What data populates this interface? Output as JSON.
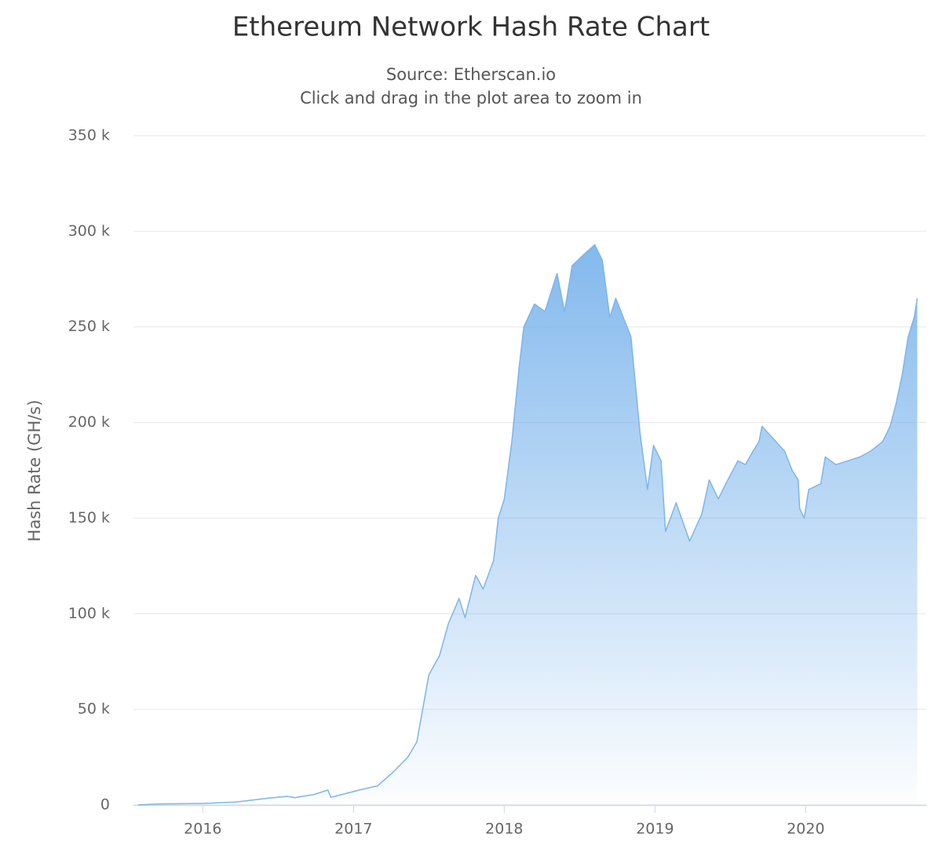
{
  "chart_data": {
    "type": "area",
    "title": "Ethereum Network Hash Rate Chart",
    "subtitle": "Source: Etherscan.io",
    "annotation": "Click and drag in the plot area to zoom in",
    "y_label": "Hash Rate (GH/s)",
    "color": "#7cb5ec",
    "grid": true,
    "x": [
      2015.57,
      2015.7,
      2016.0,
      2016.22,
      2016.43,
      2016.56,
      2016.61,
      2016.74,
      2016.83,
      2016.85,
      2016.95,
      2017.05,
      2017.16,
      2017.26,
      2017.36,
      2017.42,
      2017.47,
      2017.5,
      2017.57,
      2017.63,
      2017.7,
      2017.74,
      2017.81,
      2017.86,
      2017.93,
      2017.96,
      2018.0,
      2018.05,
      2018.1,
      2018.13,
      2018.2,
      2018.27,
      2018.35,
      2018.4,
      2018.45,
      2018.53,
      2018.6,
      2018.65,
      2018.7,
      2018.74,
      2018.79,
      2018.84,
      2018.9,
      2018.95,
      2018.99,
      2019.04,
      2019.07,
      2019.14,
      2019.23,
      2019.31,
      2019.36,
      2019.42,
      2019.47,
      2019.55,
      2019.6,
      2019.65,
      2019.69,
      2019.71,
      2019.78,
      2019.86,
      2019.91,
      2019.95,
      2019.96,
      2019.99,
      2020.02,
      2020.1,
      2020.13,
      2020.2,
      2020.28,
      2020.36,
      2020.43,
      2020.51,
      2020.56,
      2020.6,
      2020.64,
      2020.68,
      2020.72,
      2020.74
    ],
    "values": [
      0,
      500,
      800,
      1500,
      3500,
      4500,
      3800,
      5500,
      7800,
      4000,
      6000,
      8000,
      10000,
      17000,
      25000,
      33000,
      55000,
      68000,
      78000,
      95000,
      108000,
      98000,
      120000,
      113000,
      128000,
      150000,
      160000,
      190000,
      230000,
      250000,
      262000,
      258000,
      278000,
      258000,
      282000,
      288000,
      293000,
      285000,
      255000,
      265000,
      255000,
      245000,
      195000,
      165000,
      188000,
      180000,
      143000,
      158000,
      138000,
      152000,
      170000,
      160000,
      168000,
      180000,
      178000,
      185000,
      190000,
      198000,
      192000,
      185000,
      175000,
      170000,
      155000,
      150000,
      165000,
      168000,
      182000,
      178000,
      180000,
      182000,
      185000,
      190000,
      198000,
      210000,
      225000,
      245000,
      255000,
      265000
    ],
    "xlim": [
      2015.54,
      2020.8
    ],
    "xticks": [
      2016,
      2017,
      2018,
      2019,
      2020
    ],
    "ylim": [
      0,
      350000
    ],
    "yticks": [
      {
        "value": 0,
        "label": "0"
      },
      {
        "value": 50000,
        "label": "50 k"
      },
      {
        "value": 100000,
        "label": "100 k"
      },
      {
        "value": 150000,
        "label": "150 k"
      },
      {
        "value": 200000,
        "label": "200 k"
      },
      {
        "value": 250000,
        "label": "250 k"
      },
      {
        "value": 300000,
        "label": "300 k"
      },
      {
        "value": 350000,
        "label": "350 k"
      }
    ]
  }
}
